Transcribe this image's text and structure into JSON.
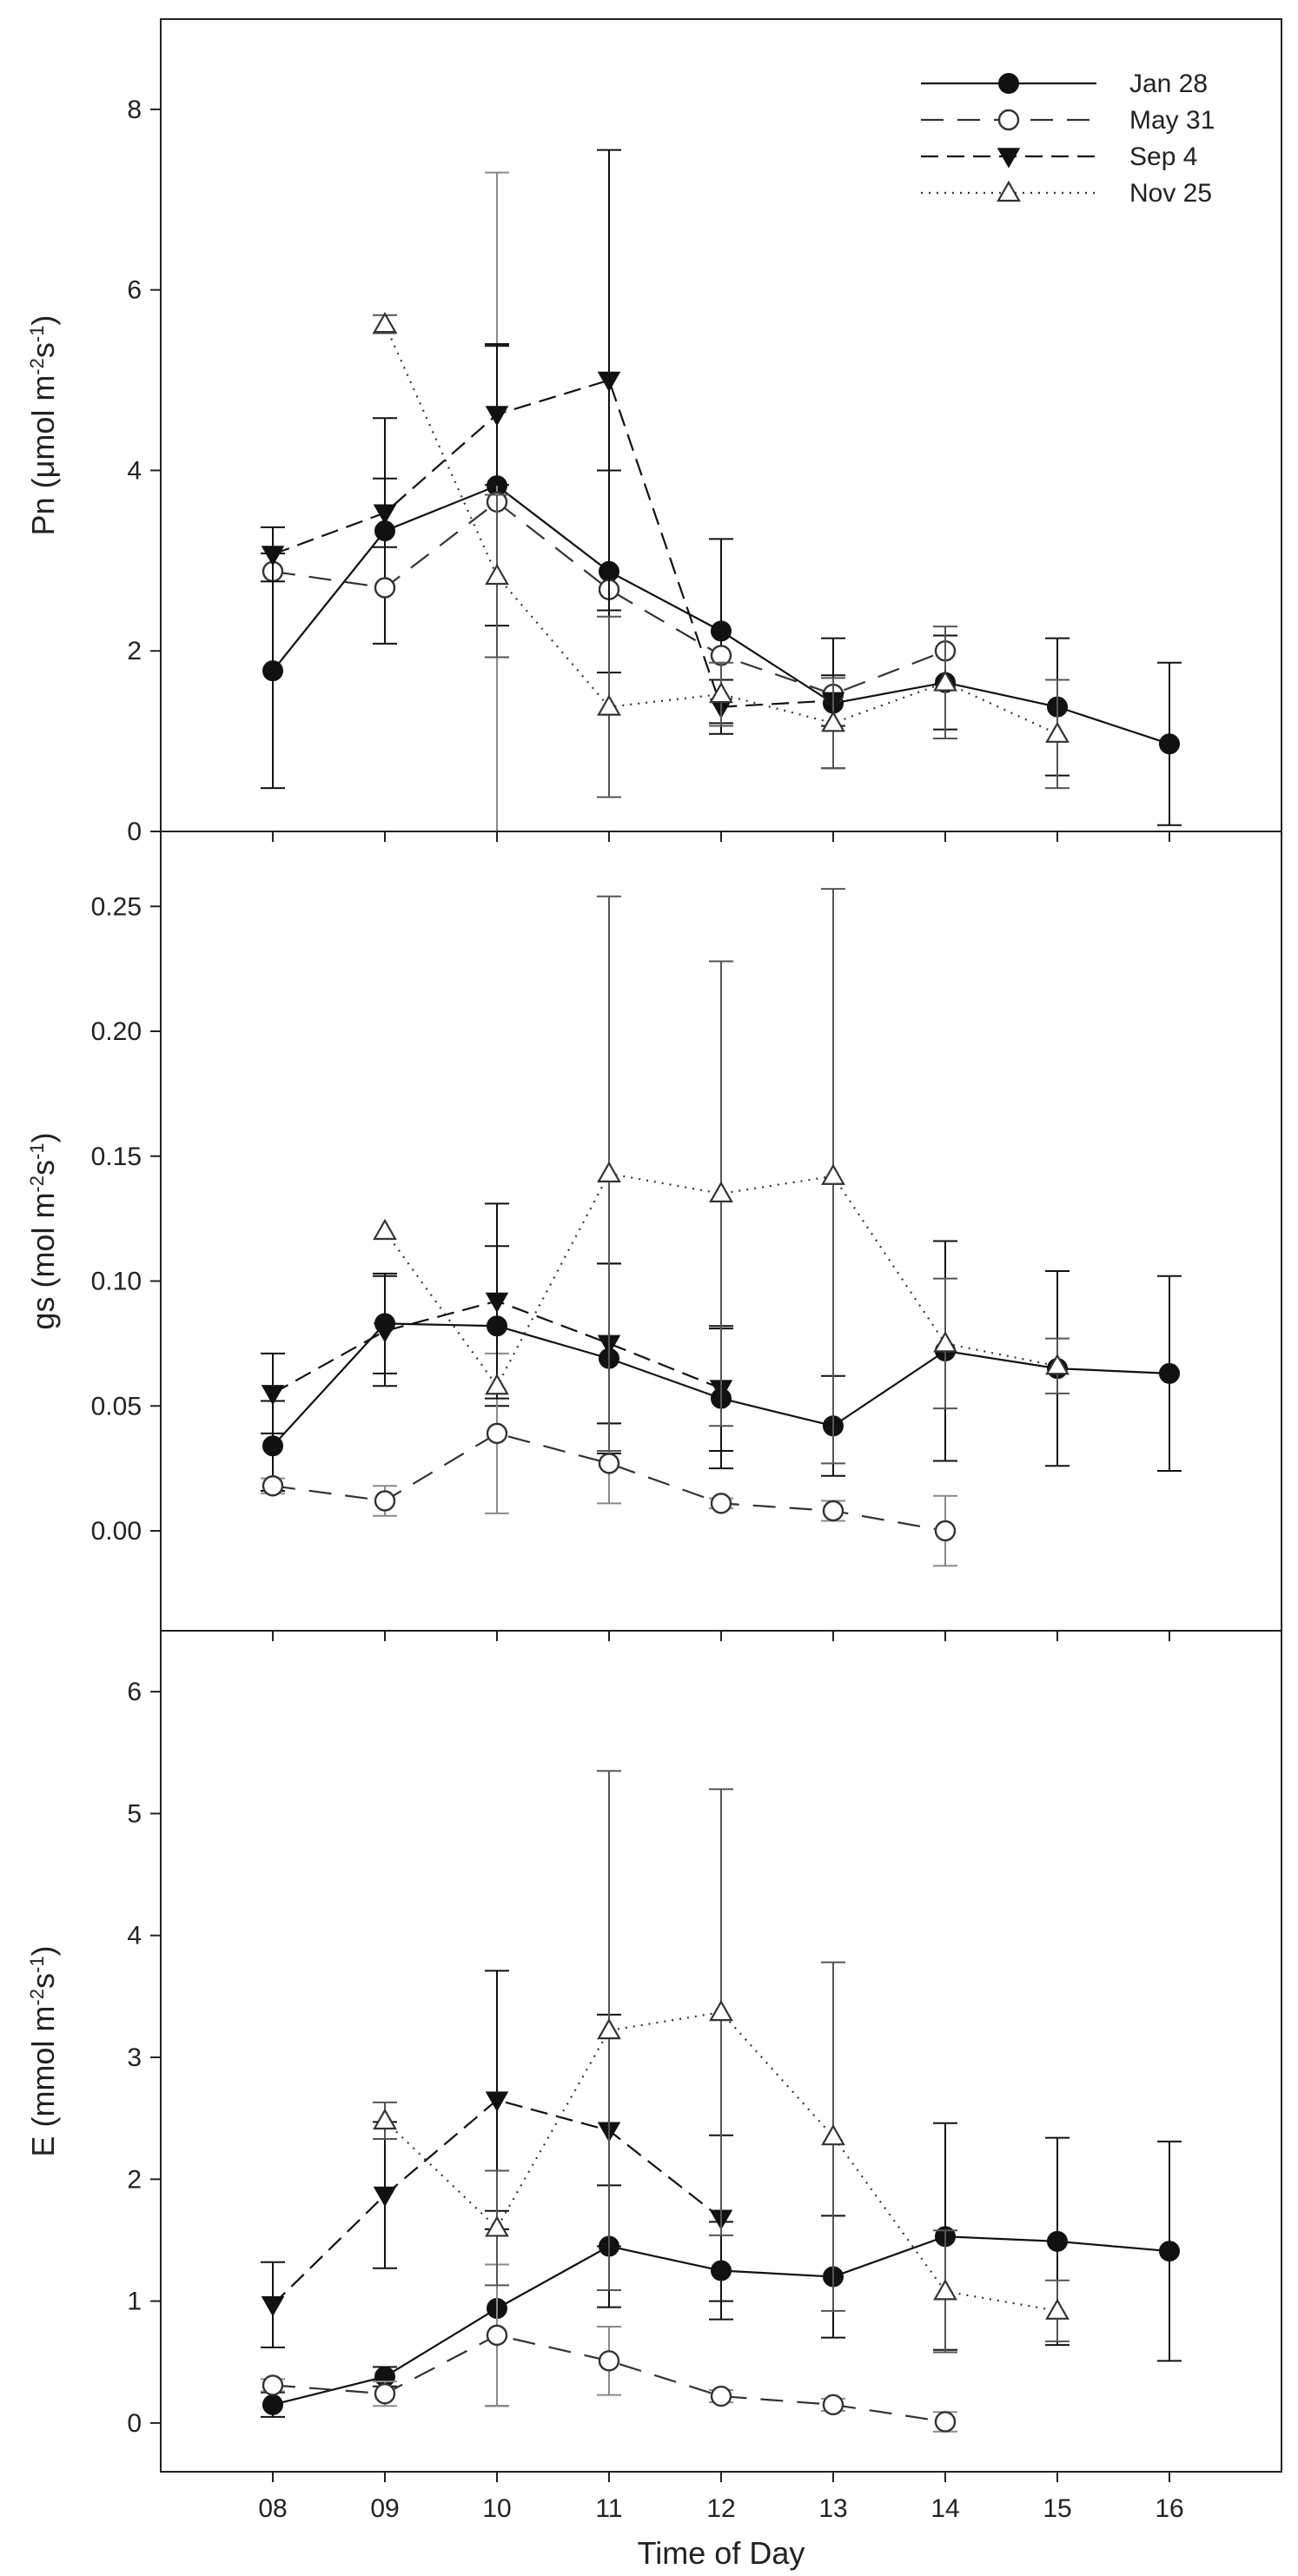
{
  "chart_data": [
    {
      "type": "line",
      "panel": "top",
      "ylabel": "Pn (μmol m⁻²s⁻¹)",
      "ylabel_parts": {
        "pre": "Pn (μmol m",
        "sup1": "-2",
        "mid": "s",
        "sup2": "-1",
        "post": ")"
      },
      "xlabel": "",
      "ylim": [
        0,
        9
      ],
      "yticks": [
        0,
        2,
        4,
        6,
        8
      ],
      "ytick_labels": [
        "0",
        "2",
        "4",
        "6",
        "8"
      ],
      "xlim": [
        7,
        17
      ],
      "series": [
        {
          "name": "Jan 28",
          "x": [
            8,
            9,
            10,
            11,
            12,
            13,
            14,
            15,
            16
          ],
          "values": [
            1.78,
            3.33,
            3.83,
            2.88,
            2.22,
            1.42,
            1.65,
            1.38,
            0.97
          ],
          "errors": [
            1.3,
            1.25,
            1.55,
            1.12,
            1.02,
            0.72,
            0.52,
            0.76,
            0.9
          ]
        },
        {
          "name": "May 31",
          "x": [
            8,
            9,
            10,
            11,
            12,
            13,
            14
          ],
          "values": [
            2.88,
            2.7,
            3.65,
            2.68,
            1.95,
            1.52,
            2.0
          ],
          "errors": [
            0.0,
            0.0,
            3.65,
            0.0,
            0.0,
            0.0,
            0.0
          ]
        },
        {
          "name": "Sep 4",
          "x": [
            8,
            9,
            10,
            11,
            12,
            13
          ],
          "values": [
            3.07,
            3.53,
            4.62,
            5.0,
            1.38,
            1.45
          ],
          "errors": [
            0.3,
            0.38,
            0.78,
            2.55,
            0.3,
            0.28
          ]
        },
        {
          "name": "Nov 25",
          "x": [
            9,
            10,
            11,
            12,
            13,
            14,
            15
          ],
          "values": [
            5.62,
            2.83,
            1.38,
            1.52,
            1.2,
            1.65,
            1.08
          ],
          "errors": [
            0.1,
            0.9,
            1.0,
            0.35,
            0.5,
            0.62,
            0.6
          ]
        }
      ],
      "legend": {
        "placement": "top-right",
        "entries": [
          "Jan 28",
          "May 31",
          "Sep 4",
          "Nov 25"
        ]
      }
    },
    {
      "type": "line",
      "panel": "middle",
      "ylabel": "gs (mol m⁻²s⁻¹)",
      "ylabel_parts": {
        "pre": "gs (mol m",
        "sup1": "-2",
        "mid": "s",
        "sup2": "-1",
        "post": ")"
      },
      "xlabel": "",
      "ylim": [
        -0.04,
        0.28
      ],
      "yticks": [
        0,
        0.05,
        0.1,
        0.15,
        0.2,
        0.25
      ],
      "ytick_labels": [
        "0.00",
        "0.05",
        "0.10",
        "0.15",
        "0.20",
        "0.25"
      ],
      "xlim": [
        7,
        17
      ],
      "series": [
        {
          "name": "Jan 28",
          "x": [
            8,
            9,
            10,
            11,
            12,
            13,
            14,
            15,
            16
          ],
          "values": [
            0.034,
            0.083,
            0.082,
            0.069,
            0.053,
            0.042,
            0.072,
            0.065,
            0.063
          ],
          "errors": [
            0.018,
            0.02,
            0.032,
            0.038,
            0.028,
            0.02,
            0.044,
            0.039,
            0.039
          ]
        },
        {
          "name": "May 31",
          "x": [
            8,
            9,
            10,
            11,
            12,
            13,
            14
          ],
          "values": [
            0.018,
            0.012,
            0.039,
            0.027,
            0.011,
            0.008,
            0.0
          ],
          "errors": [
            0.003,
            0.006,
            0.032,
            0.016,
            0.002,
            0.004,
            0.014
          ]
        },
        {
          "name": "Sep 4",
          "x": [
            8,
            9,
            10,
            11,
            12
          ],
          "values": [
            0.055,
            0.08,
            0.092,
            0.075,
            0.057
          ],
          "errors": [
            0.016,
            0.022,
            0.039,
            0.032,
            0.025
          ]
        },
        {
          "name": "Nov 25",
          "x": [
            9,
            10,
            11,
            12,
            13,
            14,
            15
          ],
          "values": [
            0.12,
            0.058,
            0.143,
            0.135,
            0.142,
            0.075,
            0.066
          ],
          "errors": [
            0.0,
            0.0,
            0.111,
            0.093,
            0.115,
            0.026,
            0.011
          ]
        }
      ]
    },
    {
      "type": "line",
      "panel": "bottom",
      "ylabel": "E (mmol m⁻²s⁻¹)",
      "ylabel_parts": {
        "pre": "E (mmol m",
        "sup1": "-2",
        "mid": "s",
        "sup2": "-1",
        "post": ")"
      },
      "xlabel": "Time of Day",
      "ylim": [
        -0.4,
        6.5
      ],
      "yticks": [
        0,
        1,
        2,
        3,
        4,
        5,
        6
      ],
      "ytick_labels": [
        "0",
        "1",
        "2",
        "3",
        "4",
        "5",
        "6"
      ],
      "xlim": [
        7,
        17
      ],
      "xticks": [
        8,
        9,
        10,
        11,
        12,
        13,
        14,
        15,
        16
      ],
      "xtick_labels": [
        "08",
        "09",
        "10",
        "11",
        "12",
        "13",
        "14",
        "15",
        "16"
      ],
      "series": [
        {
          "name": "Jan 28",
          "x": [
            8,
            9,
            10,
            11,
            12,
            13,
            14,
            15,
            16
          ],
          "values": [
            0.15,
            0.38,
            0.94,
            1.45,
            1.25,
            1.2,
            1.53,
            1.49,
            1.41
          ],
          "errors": [
            0.1,
            0.08,
            0.8,
            0.5,
            0.4,
            0.5,
            0.93,
            0.85,
            0.9
          ]
        },
        {
          "name": "May 31",
          "x": [
            8,
            9,
            10,
            11,
            12,
            13,
            14
          ],
          "values": [
            0.31,
            0.24,
            0.72,
            0.51,
            0.22,
            0.15,
            0.01
          ],
          "errors": [
            0.05,
            0.1,
            0.58,
            0.28,
            0.05,
            0.05,
            0.08
          ]
        },
        {
          "name": "Sep 4",
          "x": [
            8,
            9,
            10,
            11,
            12
          ],
          "values": [
            0.97,
            1.87,
            2.65,
            2.4,
            1.68
          ],
          "errors": [
            0.35,
            0.6,
            1.06,
            0.95,
            0.68
          ]
        },
        {
          "name": "Nov 25",
          "x": [
            9,
            10,
            11,
            12,
            13,
            14,
            15
          ],
          "values": [
            2.48,
            1.6,
            3.22,
            3.37,
            2.35,
            1.08,
            0.92
          ],
          "errors": [
            0.15,
            0.47,
            2.13,
            1.83,
            1.43,
            0.5,
            0.25
          ]
        }
      ]
    }
  ],
  "series_styles": {
    "Jan 28": {
      "color": "#111111",
      "dash": "",
      "marker": "filled-circle"
    },
    "May 31": {
      "color": "#333333",
      "dash": "26,16",
      "marker": "open-circle"
    },
    "Sep 4": {
      "color": "#111111",
      "dash": "20,10",
      "marker": "filled-triangle-down"
    },
    "Nov 25": {
      "color": "#333333",
      "dash": "2,7",
      "marker": "open-triangle-up"
    }
  },
  "error_bar_colors": {
    "Jan 28": "#111111",
    "May 31": "#8a8a8a",
    "Sep 4": "#111111",
    "Nov 25": "#555555"
  }
}
